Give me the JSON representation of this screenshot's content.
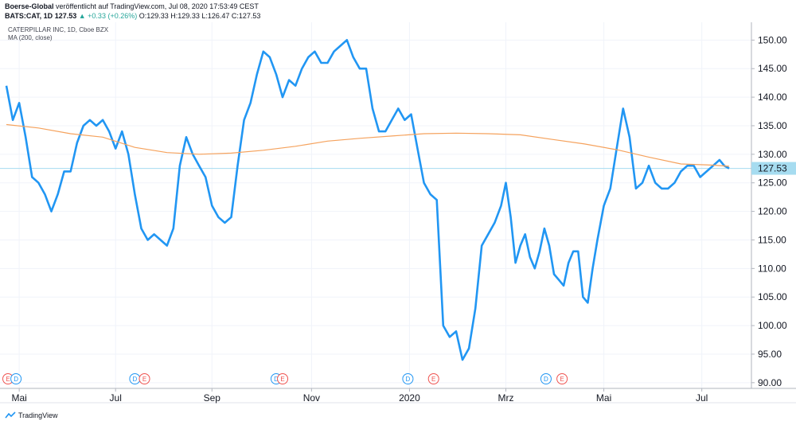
{
  "header": {
    "line1_bold": "Boerse-Global",
    "line1_rest": " veröffentlicht auf TradingView.com, Jul 08, 2020 17:53:49 CEST",
    "ticker": "BATS:CAT, 1D",
    "last": "127.53",
    "change_arrow": "▲",
    "change": "+0.33 (+0.26%)",
    "o_label": "O:",
    "o_val": "129.33",
    "h_label": "H:",
    "h_val": "129.33",
    "l_label": "L:",
    "l_val": "126.47",
    "c_label": "C:",
    "c_val": "127.53"
  },
  "legend": {
    "symbol": "CATERPILLAR INC, 1D, Cboe BZX",
    "indicator": "MA (200, close)"
  },
  "footer": {
    "brand": "TradingView"
  },
  "colors": {
    "price": "#2196f3",
    "ma": "#f5a25d",
    "last_line": "#a6dcf0",
    "axis_text": "#131722",
    "dividend": "#2196f3",
    "earnings": "#ef5350"
  },
  "chart_data": {
    "type": "line",
    "y_ticks": [
      "150.00",
      "145.00",
      "140.00",
      "135.00",
      "130.00",
      "125.00",
      "120.00",
      "115.00",
      "110.00",
      "105.00",
      "100.00",
      "95.00",
      "90.00"
    ],
    "ylim": [
      89,
      152
    ],
    "x_ticks": [
      {
        "label": "Mai",
        "x": 8
      },
      {
        "label": "Jul",
        "x": 68
      },
      {
        "label": "Sep",
        "x": 128
      },
      {
        "label": "Nov",
        "x": 190
      },
      {
        "label": "2020",
        "x": 251
      },
      {
        "label": "Mrz",
        "x": 311
      },
      {
        "label": "Mai",
        "x": 372
      },
      {
        "label": "Jul",
        "x": 433
      }
    ],
    "xlim": [
      0,
      452
    ],
    "last_price": 127.53,
    "last_price_label": "127.53",
    "series": [
      {
        "role": "price",
        "x": [
          0,
          4,
          8,
          12,
          16,
          20,
          24,
          28,
          32,
          36,
          40,
          44,
          48,
          52,
          56,
          60,
          64,
          68,
          72,
          76,
          80,
          84,
          88,
          92,
          96,
          100,
          104,
          108,
          112,
          116,
          120,
          124,
          128,
          132,
          136,
          140,
          144,
          148,
          152,
          156,
          160,
          164,
          168,
          172,
          176,
          180,
          184,
          188,
          192,
          196,
          200,
          204,
          208,
          212,
          216,
          220,
          224,
          228,
          232,
          236,
          240,
          244,
          248,
          252,
          256,
          260,
          264,
          268,
          272,
          276,
          280,
          284,
          288,
          292,
          296,
          300,
          304,
          308,
          311,
          314,
          317,
          320,
          323,
          326,
          329,
          332,
          335,
          338,
          341,
          344,
          347,
          350,
          353,
          356,
          359,
          362,
          365,
          368,
          372,
          376,
          380,
          384,
          388,
          392,
          396,
          400,
          404,
          408,
          412,
          416,
          420,
          424,
          428,
          432,
          436,
          440,
          444,
          447,
          450
        ],
        "values": [
          142,
          136,
          139,
          133,
          126,
          125,
          123,
          120,
          123,
          127,
          127,
          132,
          135,
          136,
          135,
          136,
          134,
          131,
          134,
          130,
          123,
          117,
          115,
          116,
          115,
          114,
          117,
          128,
          133,
          130,
          128,
          126,
          121,
          119,
          118,
          119,
          128,
          136,
          139,
          144,
          148,
          147,
          144,
          140,
          143,
          142,
          145,
          147,
          148,
          146,
          146,
          148,
          149,
          150,
          147,
          145,
          145,
          138,
          134,
          134,
          136,
          138,
          136,
          137,
          131,
          125,
          123,
          122,
          100,
          98,
          99,
          94,
          96,
          103,
          114,
          116,
          118,
          121,
          125,
          119,
          111,
          114,
          116,
          112,
          110,
          113,
          117,
          114,
          109,
          108,
          107,
          111,
          113,
          113,
          105,
          104,
          110,
          115,
          121,
          124,
          131,
          138,
          133,
          124,
          125,
          128,
          125,
          124,
          124,
          125,
          127,
          128,
          128,
          126,
          127,
          128,
          129,
          128,
          127.53
        ],
        "values_note": ""
      },
      {
        "role": "ma",
        "x": [
          0,
          20,
          40,
          60,
          80,
          100,
          120,
          140,
          160,
          180,
          200,
          220,
          240,
          260,
          280,
          300,
          320,
          340,
          360,
          380,
          400,
          420,
          440,
          450
        ],
        "values": [
          135.2,
          134.6,
          133.6,
          133.0,
          131.2,
          130.3,
          130.0,
          130.2,
          130.7,
          131.4,
          132.3,
          132.8,
          133.2,
          133.6,
          133.7,
          133.6,
          133.4,
          132.6,
          131.8,
          130.8,
          129.5,
          128.3,
          128.1,
          127.9
        ]
      }
    ],
    "events": [
      {
        "type": "earnings",
        "label": "E",
        "x": 1
      },
      {
        "type": "dividend",
        "label": "D",
        "x": 6
      },
      {
        "type": "dividend",
        "label": "D",
        "x": 80
      },
      {
        "type": "earnings",
        "label": "E",
        "x": 86
      },
      {
        "type": "dividend",
        "label": "D",
        "x": 168
      },
      {
        "type": "earnings",
        "label": "E",
        "x": 172
      },
      {
        "type": "dividend",
        "label": "D",
        "x": 250
      },
      {
        "type": "earnings",
        "label": "E",
        "x": 266
      },
      {
        "type": "dividend",
        "label": "D",
        "x": 336
      },
      {
        "type": "earnings",
        "label": "E",
        "x": 346
      }
    ]
  }
}
